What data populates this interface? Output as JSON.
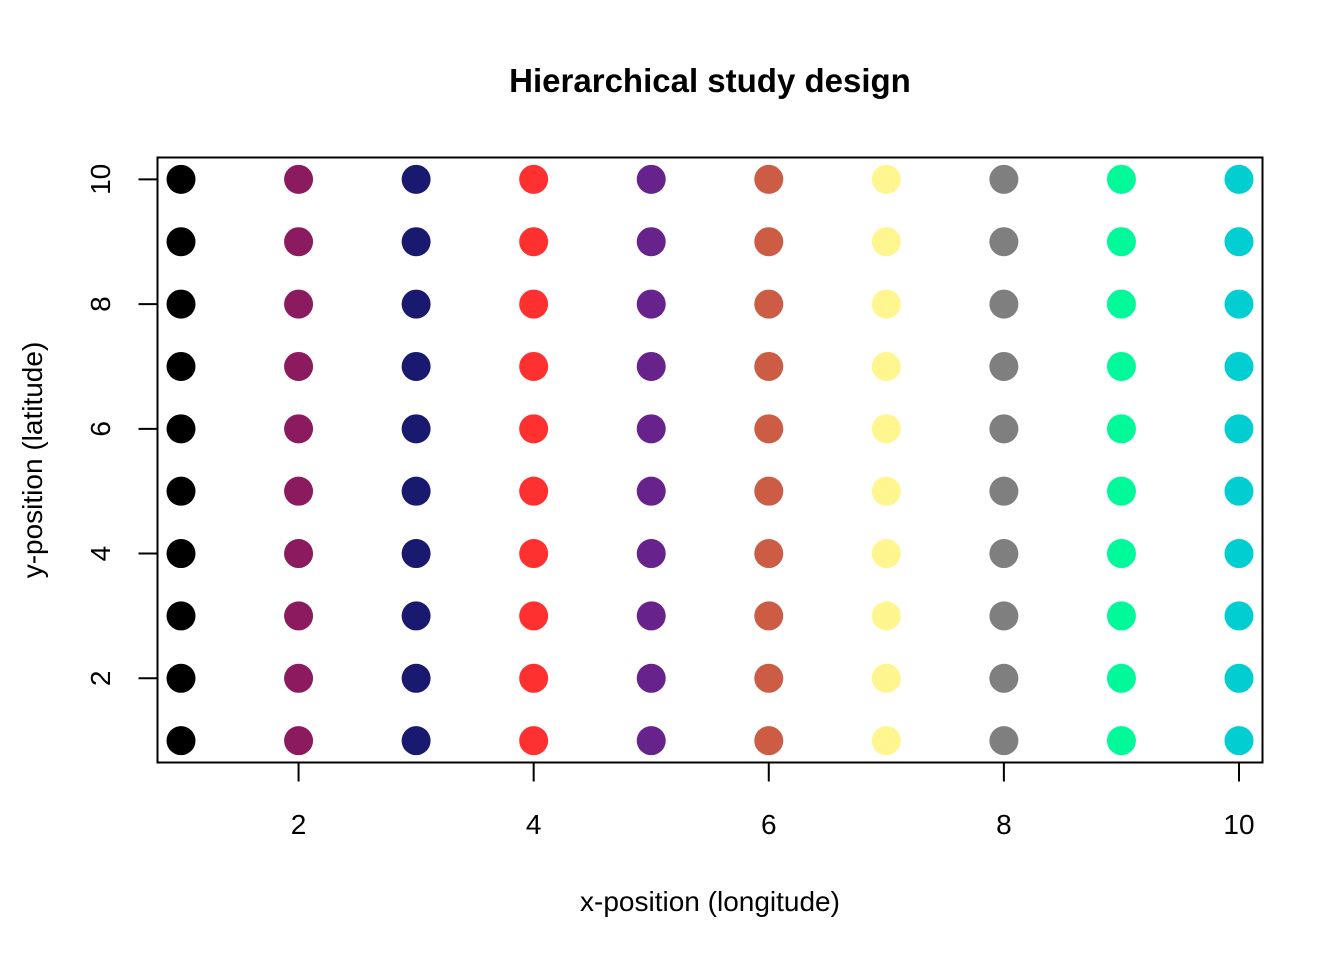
{
  "chart_data": {
    "type": "scatter",
    "title": "Hierarchical study design",
    "xlabel": "x-position (longitude)",
    "ylabel": "y-position (latitude)",
    "xlim": [
      0.8,
      10.2
    ],
    "ylim": [
      0.65,
      10.35
    ],
    "x_ticks": [
      2,
      4,
      6,
      8,
      10
    ],
    "y_ticks": [
      2,
      4,
      6,
      8,
      10
    ],
    "grid": false,
    "legend": "none",
    "series": [
      {
        "color": "#000000",
        "x": [
          1,
          1,
          1,
          1,
          1,
          1,
          1,
          1,
          1,
          1
        ],
        "y": [
          1,
          2,
          3,
          4,
          5,
          6,
          7,
          8,
          9,
          10
        ]
      },
      {
        "color": "#8B1A5E",
        "x": [
          2,
          2,
          2,
          2,
          2,
          2,
          2,
          2,
          2,
          2
        ],
        "y": [
          1,
          2,
          3,
          4,
          5,
          6,
          7,
          8,
          9,
          10
        ]
      },
      {
        "color": "#191970",
        "x": [
          3,
          3,
          3,
          3,
          3,
          3,
          3,
          3,
          3,
          3
        ],
        "y": [
          1,
          2,
          3,
          4,
          5,
          6,
          7,
          8,
          9,
          10
        ]
      },
      {
        "color": "#FF3030",
        "x": [
          4,
          4,
          4,
          4,
          4,
          4,
          4,
          4,
          4,
          4
        ],
        "y": [
          1,
          2,
          3,
          4,
          5,
          6,
          7,
          8,
          9,
          10
        ]
      },
      {
        "color": "#68228B",
        "x": [
          5,
          5,
          5,
          5,
          5,
          5,
          5,
          5,
          5,
          5
        ],
        "y": [
          1,
          2,
          3,
          4,
          5,
          6,
          7,
          8,
          9,
          10
        ]
      },
      {
        "color": "#CD5C45",
        "x": [
          6,
          6,
          6,
          6,
          6,
          6,
          6,
          6,
          6,
          6
        ],
        "y": [
          1,
          2,
          3,
          4,
          5,
          6,
          7,
          8,
          9,
          10
        ]
      },
      {
        "color": "#FFF68F",
        "x": [
          7,
          7,
          7,
          7,
          7,
          7,
          7,
          7,
          7,
          7
        ],
        "y": [
          1,
          2,
          3,
          4,
          5,
          6,
          7,
          8,
          9,
          10
        ]
      },
      {
        "color": "#7F7F7F",
        "x": [
          8,
          8,
          8,
          8,
          8,
          8,
          8,
          8,
          8,
          8
        ],
        "y": [
          1,
          2,
          3,
          4,
          5,
          6,
          7,
          8,
          9,
          10
        ]
      },
      {
        "color": "#00FA9A",
        "x": [
          9,
          9,
          9,
          9,
          9,
          9,
          9,
          9,
          9,
          9
        ],
        "y": [
          1,
          2,
          3,
          4,
          5,
          6,
          7,
          8,
          9,
          10
        ]
      },
      {
        "color": "#00CED1",
        "x": [
          10,
          10,
          10,
          10,
          10,
          10,
          10,
          10,
          10,
          10
        ],
        "y": [
          1,
          2,
          3,
          4,
          5,
          6,
          7,
          8,
          9,
          10
        ]
      }
    ]
  }
}
